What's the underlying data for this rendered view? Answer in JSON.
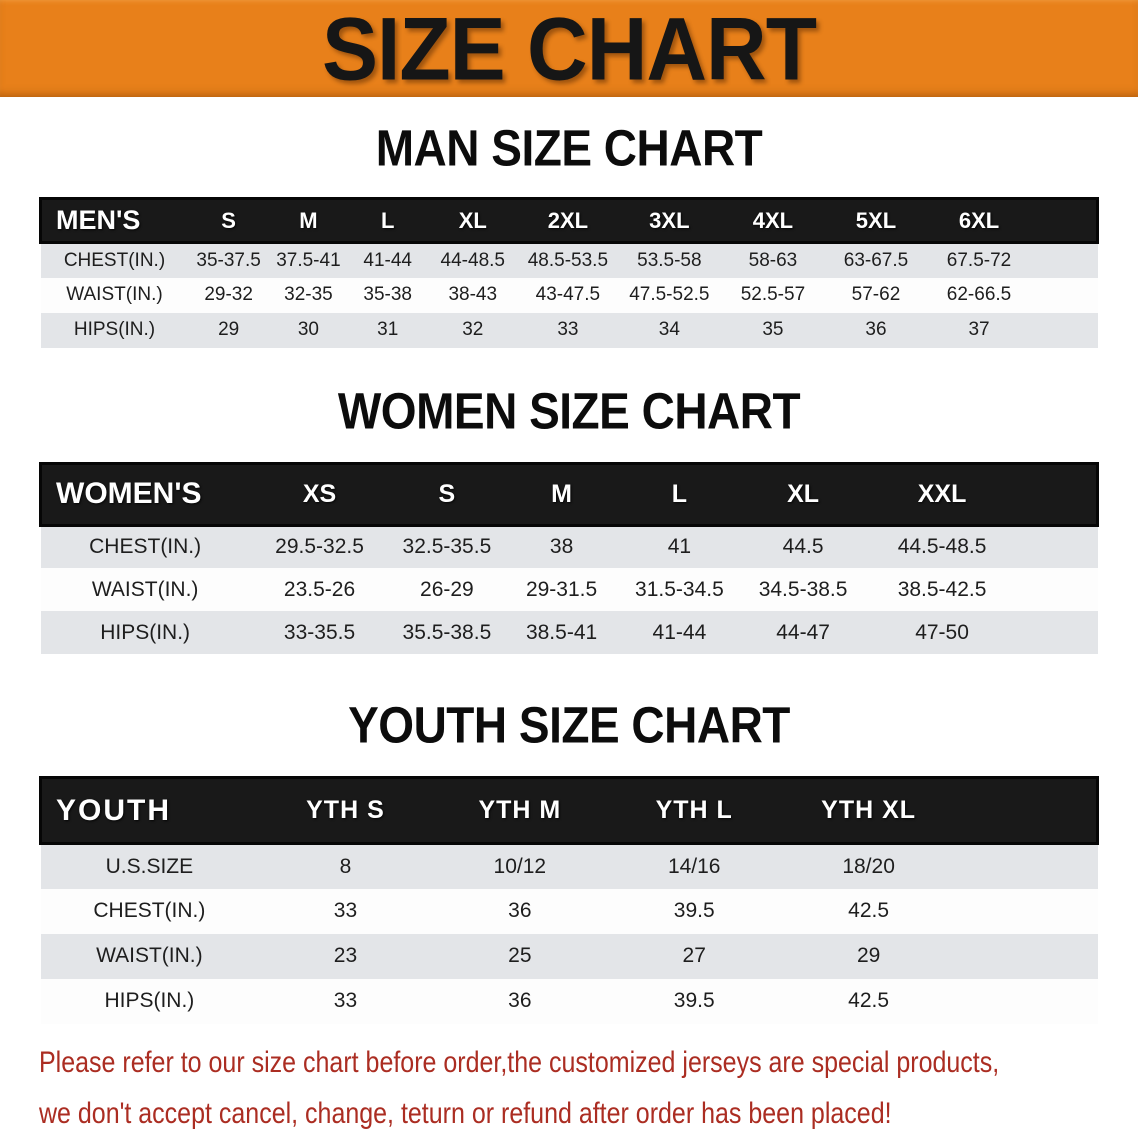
{
  "banner": {
    "title": "SIZE CHART"
  },
  "tables": [
    {
      "id": "men",
      "title": "MAN SIZE CHART",
      "header_label": "MEN'S",
      "columns": [
        "S",
        "M",
        "L",
        "XL",
        "2XL",
        "3XL",
        "4XL",
        "5XL",
        "6XL"
      ],
      "rows": [
        {
          "label": "CHEST(IN.)",
          "values": [
            "35-37.5",
            "37.5-41",
            "41-44",
            "44-48.5",
            "48.5-53.5",
            "53.5-58",
            "58-63",
            "63-67.5",
            "67.5-72"
          ]
        },
        {
          "label": "WAIST(IN.)",
          "values": [
            "29-32",
            "32-35",
            "35-38",
            "38-43",
            "43-47.5",
            "47.5-52.5",
            "52.5-57",
            "57-62",
            "62-66.5"
          ]
        },
        {
          "label": "HIPS(IN.)",
          "values": [
            "29",
            "30",
            "31",
            "32",
            "33",
            "34",
            "35",
            "36",
            "37"
          ]
        }
      ]
    },
    {
      "id": "women",
      "title": "WOMEN SIZE CHART",
      "header_label": "WOMEN'S",
      "columns": [
        "XS",
        "S",
        "M",
        "L",
        "XL",
        "XXL"
      ],
      "rows": [
        {
          "label": "CHEST(IN.)",
          "values": [
            "29.5-32.5",
            "32.5-35.5",
            "38",
            "41",
            "44.5",
            "44.5-48.5"
          ]
        },
        {
          "label": "WAIST(IN.)",
          "values": [
            "23.5-26",
            "26-29",
            "29-31.5",
            "31.5-34.5",
            "34.5-38.5",
            "38.5-42.5"
          ]
        },
        {
          "label": "HIPS(IN.)",
          "values": [
            "33-35.5",
            "35.5-38.5",
            "38.5-41",
            "41-44",
            "44-47",
            "47-50"
          ]
        }
      ]
    },
    {
      "id": "youth",
      "title": "YOUTH SIZE CHART",
      "header_label": "YOUTH",
      "columns": [
        "YTH S",
        "YTH M",
        "YTH L",
        "YTH XL"
      ],
      "rows": [
        {
          "label": "U.S.SIZE",
          "values": [
            "8",
            "10/12",
            "14/16",
            "18/20"
          ]
        },
        {
          "label": "CHEST(IN.)",
          "values": [
            "33",
            "36",
            "39.5",
            "42.5"
          ]
        },
        {
          "label": "WAIST(IN.)",
          "values": [
            "23",
            "25",
            "27",
            "29"
          ]
        },
        {
          "label": "HIPS(IN.)",
          "values": [
            "33",
            "36",
            "39.5",
            "42.5"
          ]
        }
      ]
    }
  ],
  "disclaimer": {
    "line1": "Please refer to our size chart before order,the customized jerseys are special products,",
    "line2": "we don't accept cancel, change, teturn or refund after order has been placed!"
  },
  "colors": {
    "banner_bg": "#e8801a",
    "banner_text": "#161616",
    "header_bar_bg": "#191919",
    "header_bar_text": "#ffffff",
    "stripe_row_bg": "#e3e5e8",
    "table_text": "#1e1e1e",
    "title_text": "#0c0c0c",
    "disclaimer_text": "#ab2d22"
  }
}
